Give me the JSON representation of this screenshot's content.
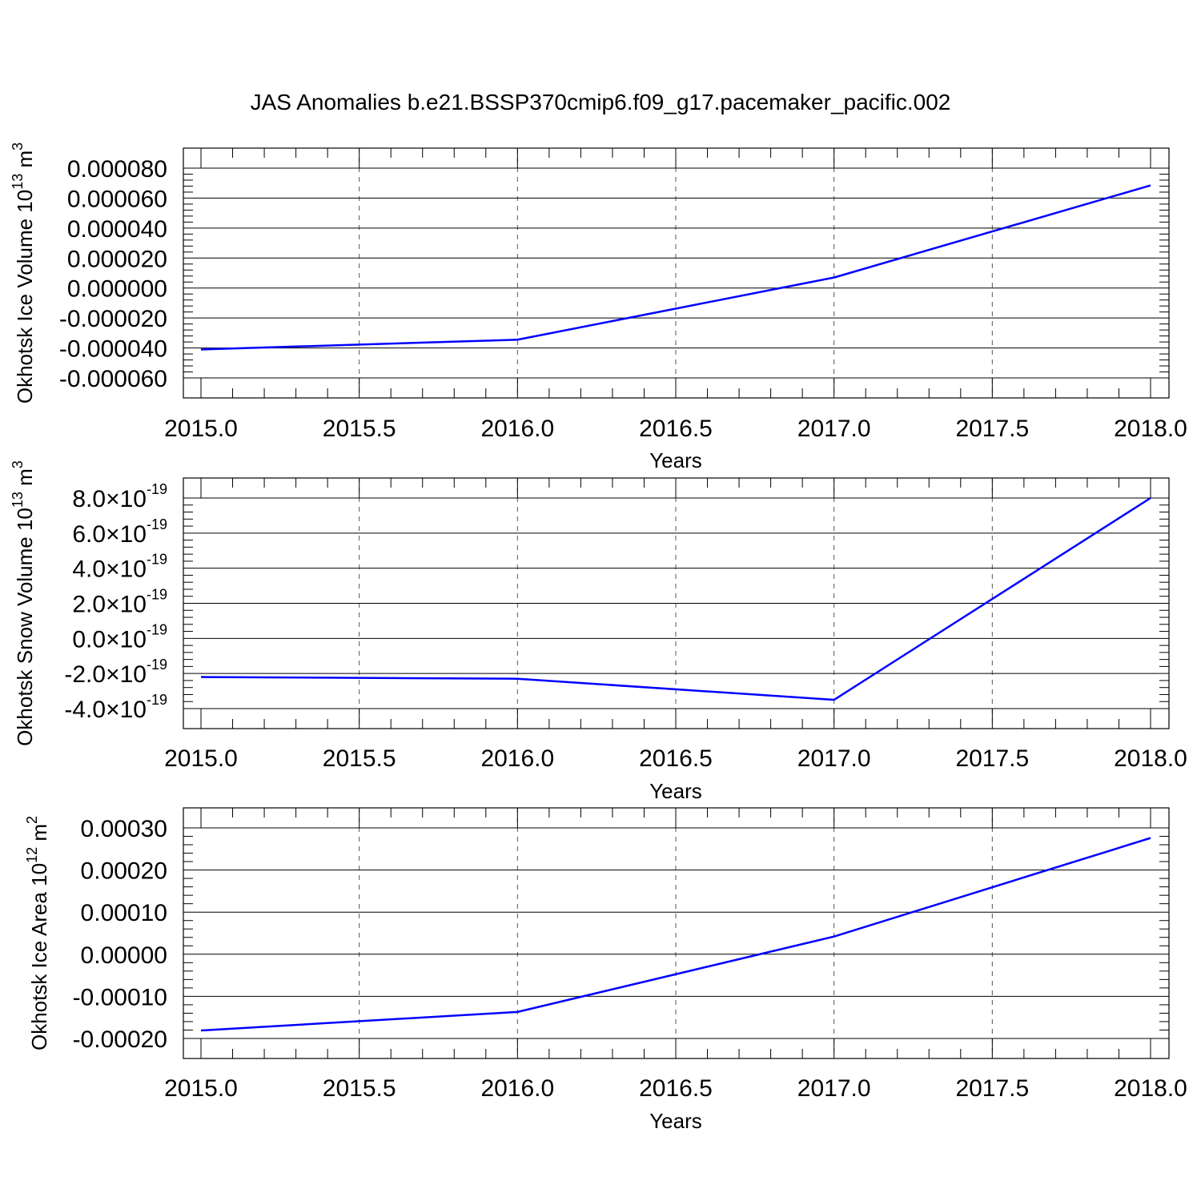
{
  "title": "JAS Anomalies b.e21.BSSP370cmip6.f09_g17.pacemaker_pacific.002",
  "colors": {
    "line": "#0000ff",
    "axis": "#000000",
    "grid": "#555555"
  },
  "chart_data": [
    {
      "type": "line",
      "xlabel": "Years",
      "ylabel_text": "Okhotsk Ice Volume 10",
      "ylabel_exp": "13",
      "ylabel_unit": " m",
      "ylabel_unit_exp": "3",
      "x_ticks": [
        "2015.0",
        "2015.5",
        "2016.0",
        "2016.5",
        "2017.0",
        "2017.5",
        "2018.0"
      ],
      "y_ticks": [
        {
          "value": 8e-05,
          "label": "0.000080"
        },
        {
          "value": 6e-05,
          "label": "0.000060"
        },
        {
          "value": 4e-05,
          "label": "0.000040"
        },
        {
          "value": 2e-05,
          "label": "0.000020"
        },
        {
          "value": 0.0,
          "label": "0.000000"
        },
        {
          "value": -2e-05,
          "label": "-0.000020"
        },
        {
          "value": -4e-05,
          "label": "-0.000040"
        },
        {
          "value": -6e-05,
          "label": "-0.000060"
        }
      ],
      "xlim": [
        2015,
        2018
      ],
      "ylim": [
        -6e-05,
        8e-05
      ],
      "grid": "vertical-dashed",
      "x": [
        2015,
        2016,
        2017,
        2018
      ],
      "y": [
        -4.1e-05,
        -3.45e-05,
        7e-06,
        6.85e-05
      ]
    },
    {
      "type": "line",
      "xlabel": "Years",
      "ylabel_text": "Okhotsk Snow Volume 10",
      "ylabel_exp": "13",
      "ylabel_unit": " m",
      "ylabel_unit_exp": "3",
      "x_ticks": [
        "2015.0",
        "2015.5",
        "2016.0",
        "2016.5",
        "2017.0",
        "2017.5",
        "2018.0"
      ],
      "y_ticks": [
        {
          "value": 8e-19,
          "mantissa": "8.0",
          "times": "×",
          "base": "10",
          "exp": "-19"
        },
        {
          "value": 6e-19,
          "mantissa": "6.0",
          "times": "×",
          "base": "10",
          "exp": "-19"
        },
        {
          "value": 4e-19,
          "mantissa": "4.0",
          "times": "×",
          "base": "10",
          "exp": "-19"
        },
        {
          "value": 2e-19,
          "mantissa": "2.0",
          "times": "×",
          "base": "10",
          "exp": "-19"
        },
        {
          "value": 0.0,
          "mantissa": "0.0",
          "times": "×",
          "base": "10",
          "exp": "-19"
        },
        {
          "value": -2e-19,
          "mantissa": "-2.0",
          "times": "×",
          "base": "10",
          "exp": "-19"
        },
        {
          "value": -4e-19,
          "mantissa": "-4.0",
          "times": "×",
          "base": "10",
          "exp": "-19"
        }
      ],
      "xlim": [
        2015,
        2018
      ],
      "ylim": [
        -4e-19,
        8e-19
      ],
      "grid": "vertical-dashed",
      "x": [
        2015,
        2016,
        2017,
        2018
      ],
      "y": [
        -2.2e-19,
        -2.3e-19,
        -3.5e-19,
        8e-19
      ]
    },
    {
      "type": "line",
      "xlabel": "Years",
      "ylabel_text": "Okhotsk Ice Area 10",
      "ylabel_exp": "12",
      "ylabel_unit": " m",
      "ylabel_unit_exp": "2",
      "x_ticks": [
        "2015.0",
        "2015.5",
        "2016.0",
        "2016.5",
        "2017.0",
        "2017.5",
        "2018.0"
      ],
      "y_ticks": [
        {
          "value": 0.0003,
          "label": "0.00030"
        },
        {
          "value": 0.0002,
          "label": "0.00020"
        },
        {
          "value": 0.0001,
          "label": "0.00010"
        },
        {
          "value": 0.0,
          "label": "0.00000"
        },
        {
          "value": -0.0001,
          "label": "-0.00010"
        },
        {
          "value": -0.0002,
          "label": "-0.00020"
        }
      ],
      "xlim": [
        2015,
        2018
      ],
      "ylim": [
        -0.0002,
        0.0003
      ],
      "grid": "vertical-dashed",
      "x": [
        2015,
        2016,
        2017,
        2018
      ],
      "y": [
        -0.000181,
        -0.000137,
        4.2e-05,
        0.000276
      ]
    }
  ]
}
